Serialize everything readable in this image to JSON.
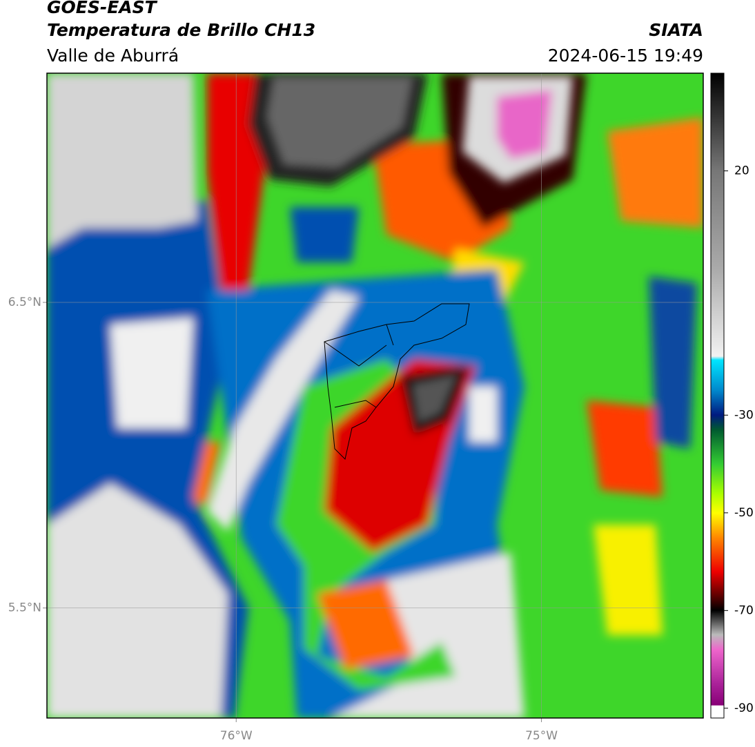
{
  "chart_data": {
    "type": "map",
    "title": "GOES-EAST",
    "subtitle": "Temperatura de Brillo CH13",
    "region": "Valle de Aburrá",
    "source": "SIATA",
    "timestamp": "2024-06-15 19:49",
    "xlim": [
      -76.62,
      -74.47
    ],
    "ylim": [
      5.14,
      7.25
    ],
    "xticks": [
      {
        "value": -76,
        "label": "76°W"
      },
      {
        "value": -75,
        "label": "75°W"
      }
    ],
    "yticks": [
      {
        "value": 6.5,
        "label": "6.5°N"
      },
      {
        "value": 5.5,
        "label": "5.5°N"
      }
    ],
    "grid": true,
    "colorbar": {
      "lim": [
        -92,
        40
      ],
      "ticks": [
        20,
        -30,
        -50,
        -70,
        -90
      ]
    }
  }
}
